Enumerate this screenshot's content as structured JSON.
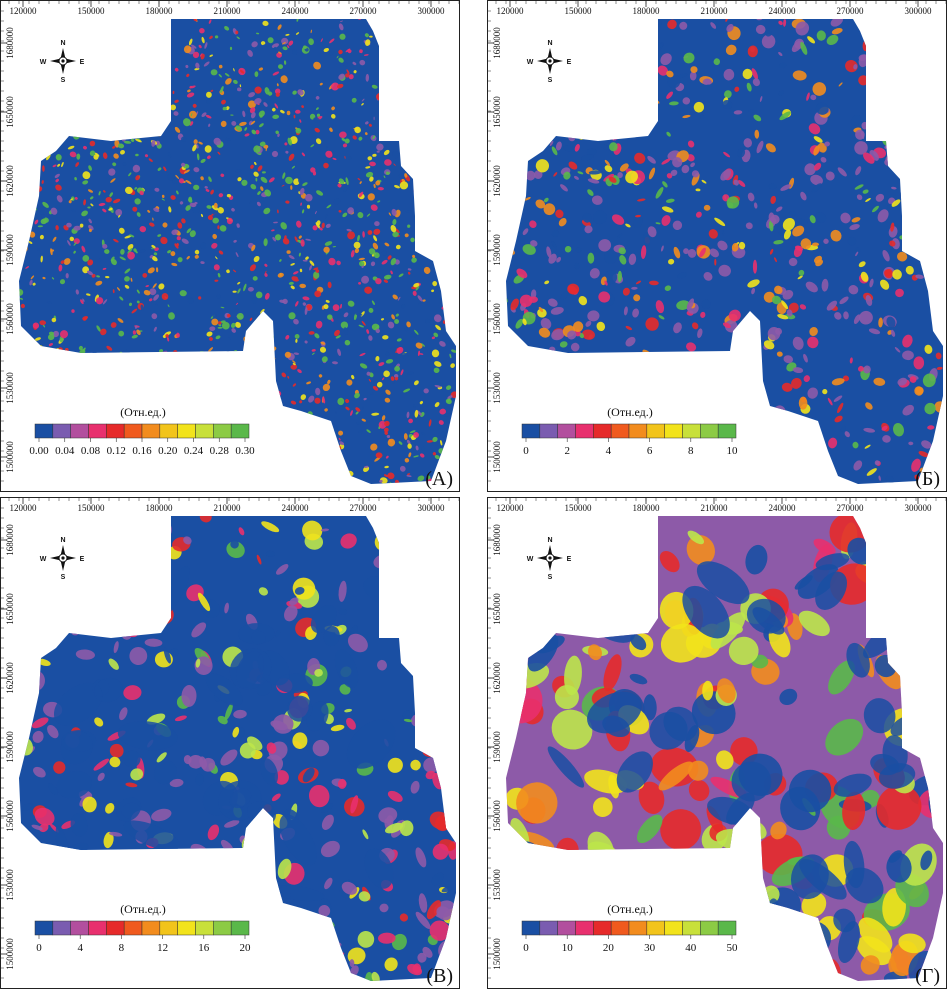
{
  "colors": {
    "palette": [
      "#1a4fa3",
      "#8d5aa8",
      "#e8306e",
      "#e62a2a",
      "#f28c1e",
      "#f2e31b",
      "#bde64a",
      "#5ab84a"
    ],
    "legend_steps": [
      "#1a4fa3",
      "#7a5cb0",
      "#b24f9e",
      "#e8306e",
      "#e62a2a",
      "#f05a1e",
      "#f28c1e",
      "#f2c41b",
      "#f2e31b",
      "#c8e03a",
      "#8ccb45",
      "#5ab84a"
    ]
  },
  "compass": {
    "n": "N",
    "s": "S",
    "e": "E",
    "w": "W"
  },
  "x_ticks": [
    "120000",
    "150000",
    "180000",
    "210000",
    "240000",
    "270000",
    "300000"
  ],
  "y_ticks": [
    "1680000",
    "1650000",
    "1620000",
    "1590000",
    "1560000",
    "1530000",
    "1500000"
  ],
  "panels": [
    {
      "label": "(А)",
      "legend_title": "(Отн.ед.)",
      "legend_ticks": [
        "0.00",
        "0.04",
        "0.08",
        "0.12",
        "0.16",
        "0.20",
        "0.24",
        "0.28",
        "0.30"
      ],
      "texture": "fine"
    },
    {
      "label": "(Б)",
      "legend_title": "(Отн.ед.)",
      "legend_ticks": [
        "0",
        "2",
        "4",
        "6",
        "8",
        "10"
      ],
      "texture": "medium"
    },
    {
      "label": "(В)",
      "legend_title": "(Отн.ед.)",
      "legend_ticks": [
        "0",
        "4",
        "8",
        "12",
        "16",
        "20"
      ],
      "texture": "coarse"
    },
    {
      "label": "(Г)",
      "legend_title": "(Отн.ед.)",
      "legend_ticks": [
        "0",
        "10",
        "20",
        "30",
        "40",
        "50"
      ],
      "texture": "smooth"
    }
  ]
}
